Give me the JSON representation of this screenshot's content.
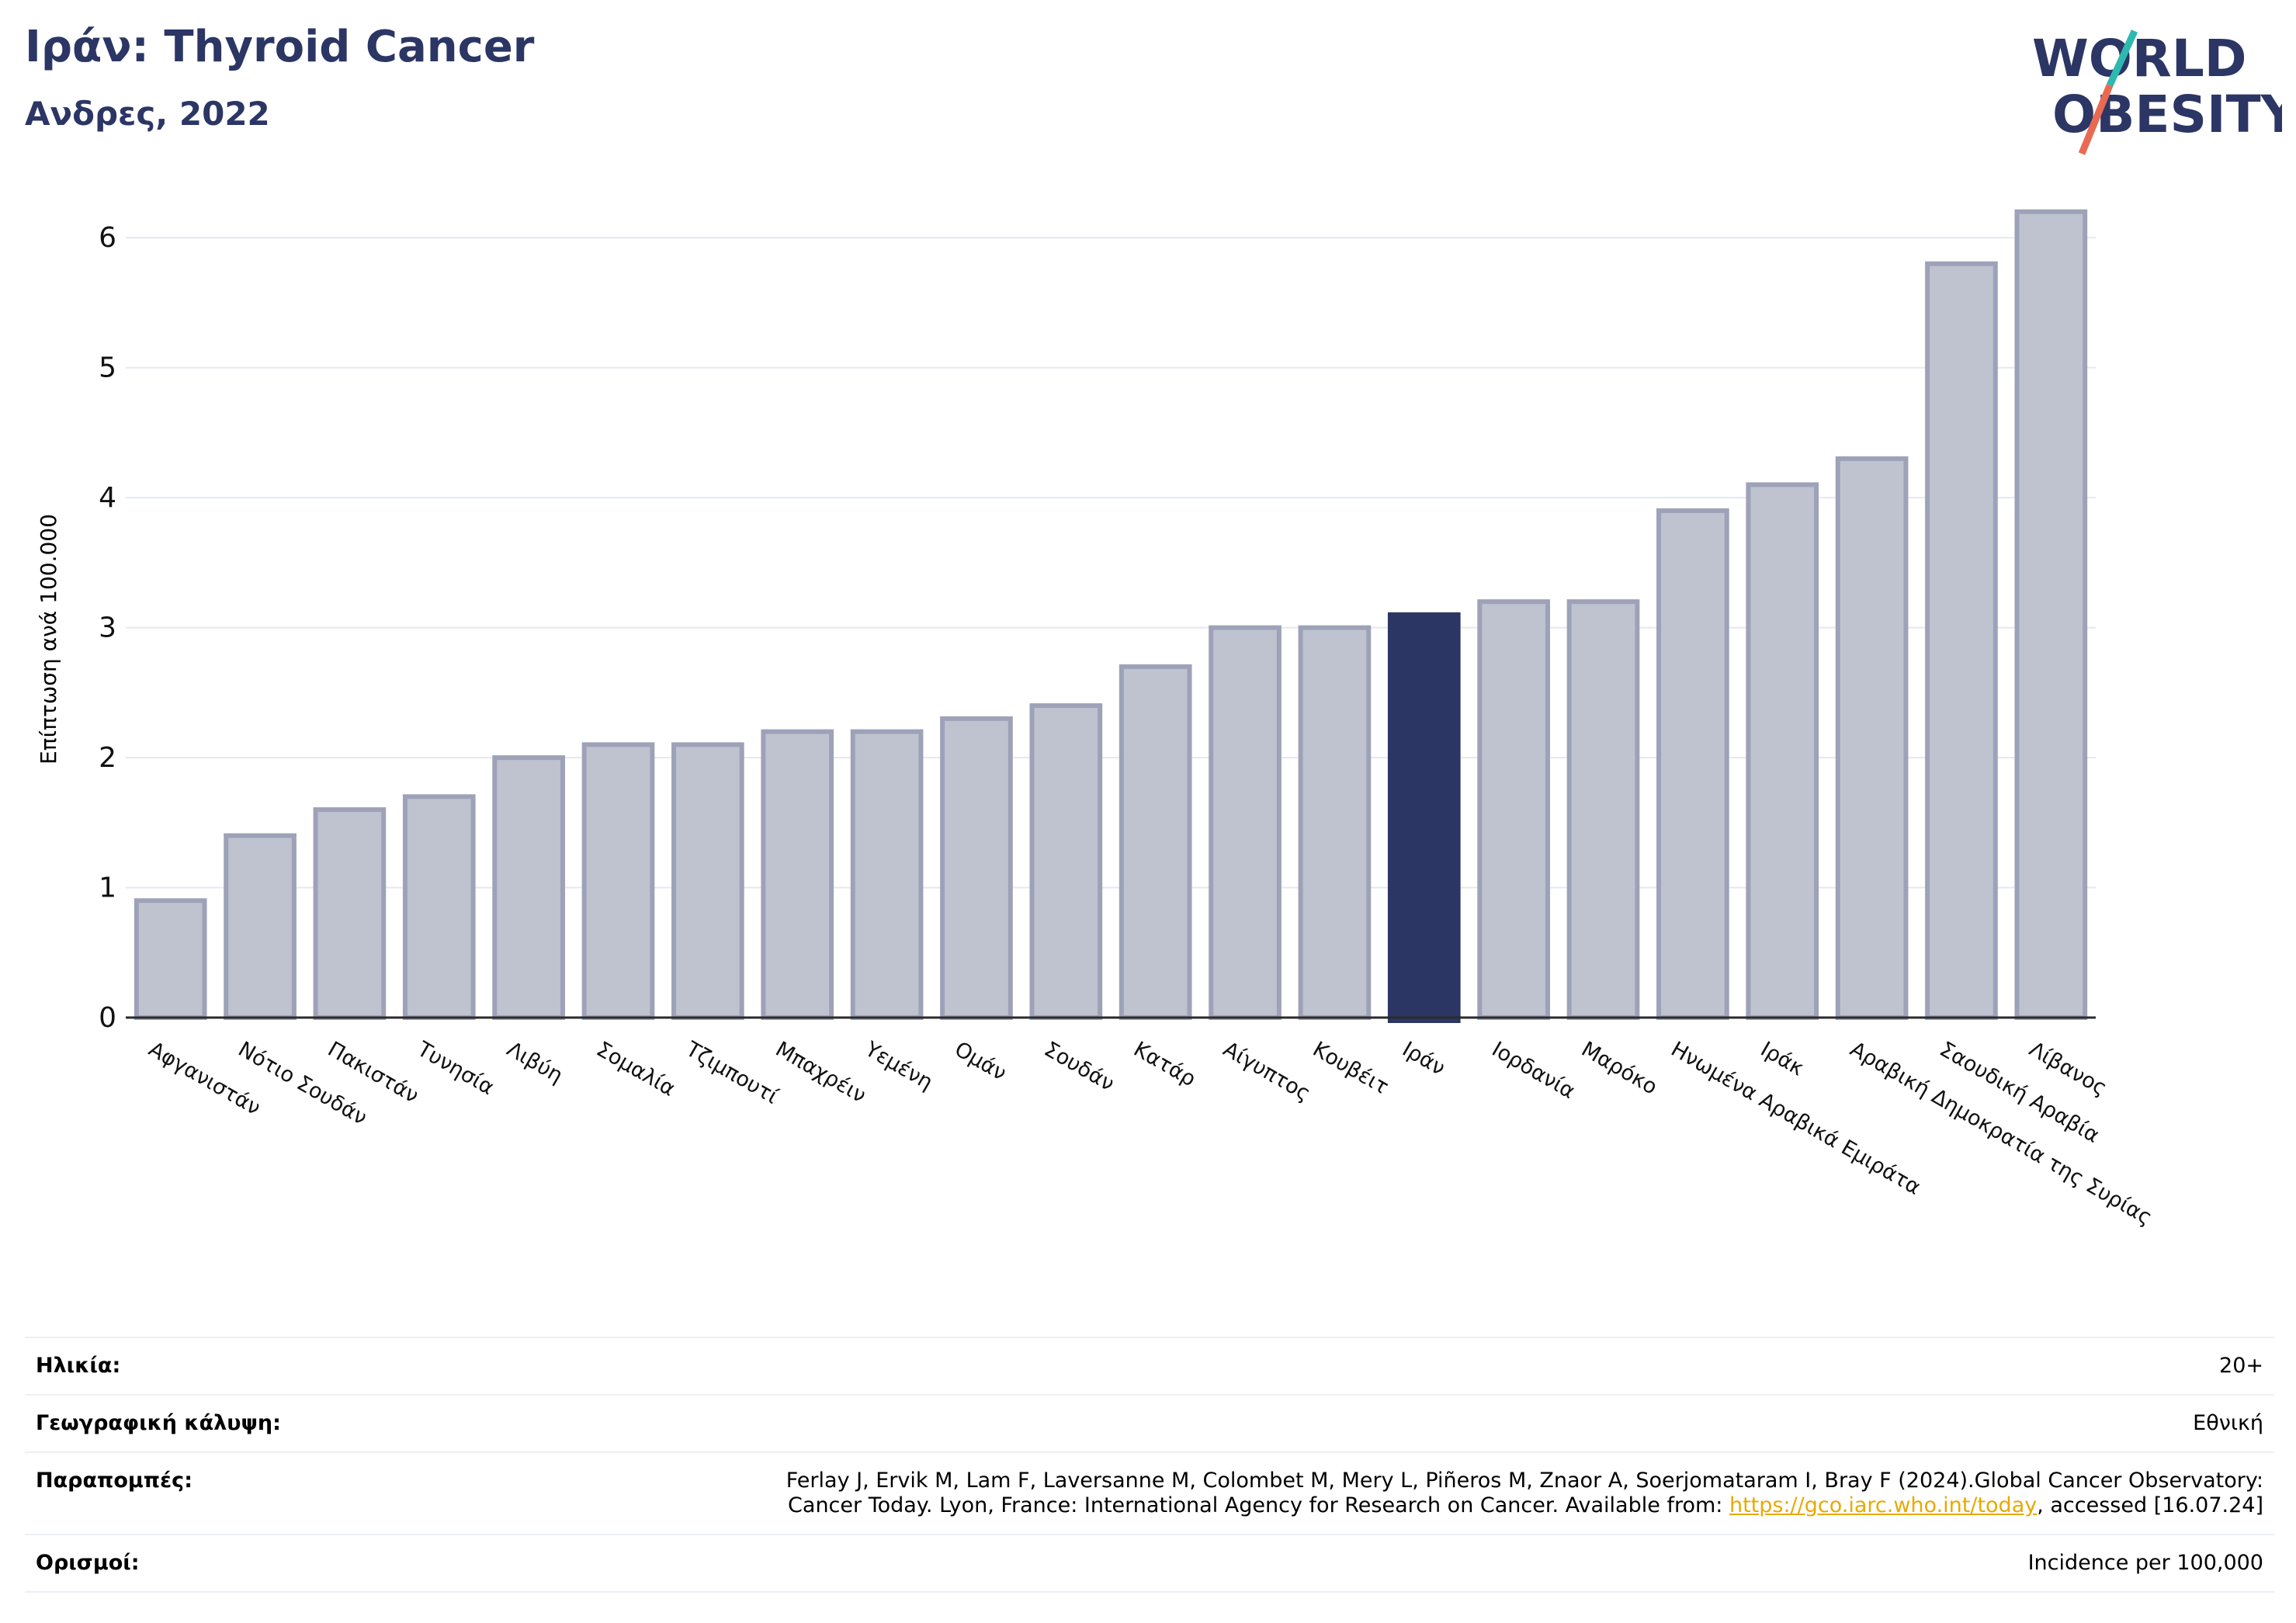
{
  "header": {
    "title": "Ιράν: Thyroid Cancer",
    "subtitle": "Ανδρες, 2022"
  },
  "logo": {
    "line1": "WORLD",
    "line2": "OBESITY",
    "colors": {
      "text": "#2b3665",
      "slash_top": "#2fb8b0",
      "slash_bottom": "#e86a52"
    }
  },
  "colors": {
    "bar_default": "#bfc2cf",
    "bar_border": "#9ea2b8",
    "bar_highlight": "#2b3665",
    "grid": "#e6e8ef",
    "axis": "#2b2b2b"
  },
  "chart_data": {
    "type": "bar",
    "ylabel": "Επίπτωση ανά 100.000",
    "ylim": [
      0,
      6.3
    ],
    "yticks": [
      0,
      1,
      2,
      3,
      4,
      5,
      6
    ],
    "grid": true,
    "highlight": "Ιράν",
    "categories": [
      "Αφγανιστάν",
      "Νότιο Σουδάν",
      "Πακιστάν",
      "Τυνησία",
      "Λιβύη",
      "Σομαλία",
      "Τζιμπουτί",
      "Μπαχρέιν",
      "Υεμένη",
      "Ομάν",
      "Σουδάν",
      "Κατάρ",
      "Αίγυπτος",
      "Κουβέιτ",
      "Ιράν",
      "Ιορδανία",
      "Μαρόκο",
      "Ηνωμένα Αραβικά Εμιράτα",
      "Ιράκ",
      "Αραβική Δημοκρατία της Συρίας",
      "Σαουδική Αραβία",
      "Λίβανος"
    ],
    "values": [
      0.9,
      1.4,
      1.6,
      1.7,
      2.0,
      2.1,
      2.1,
      2.2,
      2.2,
      2.3,
      2.4,
      2.7,
      3.0,
      3.0,
      3.1,
      3.2,
      3.2,
      3.9,
      4.1,
      4.3,
      5.8,
      6.2
    ]
  },
  "meta": {
    "age": {
      "label": "Ηλικία:",
      "value": "20+"
    },
    "coverage": {
      "label": "Γεωγραφική κάλυψη:",
      "value": "Εθνική"
    },
    "references": {
      "label": "Παραπομπές:",
      "line1": "Ferlay J, Ervik M, Lam F, Laversanne M, Colombet M, Mery L, Piñeros M, Znaor A, Soerjomataram I, Bray F (2024).Global Cancer Observatory:",
      "line2_prefix": "Cancer Today. Lyon, France: International Agency for Research on Cancer. Available from: ",
      "link": "https://gco.iarc.who.int/today",
      "line2_suffix": ", accessed [16.07.24]"
    },
    "definitions": {
      "label": "Ορισμοί:",
      "value": "Incidence per 100,000"
    }
  }
}
